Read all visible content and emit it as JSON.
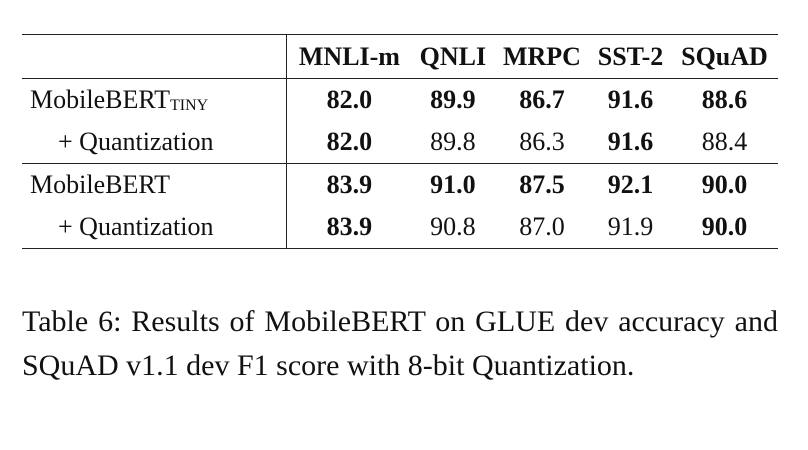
{
  "table": {
    "header": [
      "MNLI-m",
      "QNLI",
      "MRPC",
      "SST-2",
      "SQuAD"
    ],
    "groups": [
      {
        "rows": [
          {
            "label": "MobileBERT",
            "label_sub": "TINY",
            "indent": false,
            "cells": [
              "82.0",
              "89.9",
              "86.7",
              "91.6",
              "88.6"
            ],
            "bold": [
              true,
              true,
              true,
              true,
              true
            ]
          },
          {
            "label": "+ Quantization",
            "indent": true,
            "cells": [
              "82.0",
              "89.8",
              "86.3",
              "91.6",
              "88.4"
            ],
            "bold": [
              true,
              false,
              false,
              true,
              false
            ]
          }
        ]
      },
      {
        "rows": [
          {
            "label": "MobileBERT",
            "indent": false,
            "cells": [
              "83.9",
              "91.0",
              "87.5",
              "92.1",
              "90.0"
            ],
            "bold": [
              true,
              true,
              true,
              true,
              true
            ]
          },
          {
            "label": "+ Quantization",
            "indent": true,
            "cells": [
              "83.9",
              "90.8",
              "87.0",
              "91.9",
              "90.0"
            ],
            "bold": [
              true,
              false,
              false,
              false,
              true
            ]
          }
        ]
      }
    ]
  },
  "caption": "Table 6: Results of MobileBERT on GLUE dev accuracy and SQuAD v1.1 dev F1 score with 8-bit Quantization."
}
